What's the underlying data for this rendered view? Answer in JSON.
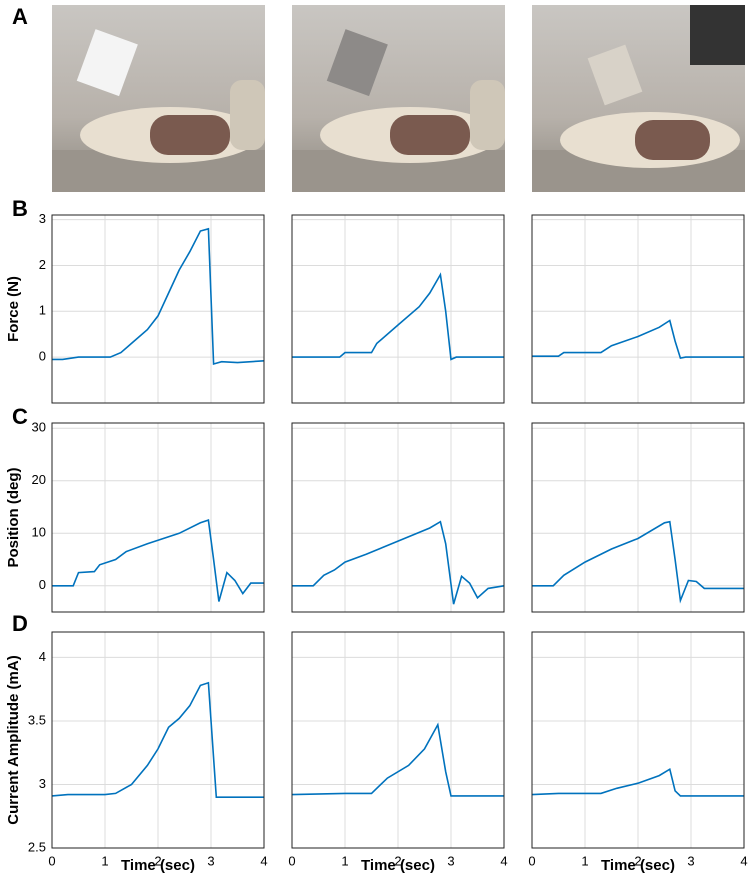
{
  "panel_labels": [
    "A",
    "B",
    "C",
    "D"
  ],
  "chart_data": [
    {
      "type": "line",
      "ylabel": "Force (N)",
      "xlim": [
        0,
        4
      ],
      "xticks": [
        0,
        1,
        2,
        3,
        4
      ],
      "ylim": [
        -1,
        3.1
      ],
      "yticks": [
        0,
        1,
        2,
        3
      ],
      "grid": true,
      "color": "#0072bd",
      "x": [
        0,
        0.2,
        0.5,
        1.1,
        1.3,
        1.5,
        1.8,
        2.0,
        2.2,
        2.4,
        2.6,
        2.8,
        2.95,
        3.05,
        3.2,
        3.5,
        4
      ],
      "values": [
        -0.05,
        -0.05,
        0,
        0,
        0.1,
        0.3,
        0.6,
        0.9,
        1.4,
        1.9,
        2.3,
        2.75,
        2.8,
        -0.15,
        -0.1,
        -0.12,
        -0.08
      ]
    },
    {
      "type": "line",
      "xlim": [
        0,
        4
      ],
      "xticks": [
        0,
        1,
        2,
        3,
        4
      ],
      "ylim": [
        -1,
        3.1
      ],
      "yticks": [
        0,
        1,
        2,
        3
      ],
      "grid": true,
      "color": "#0072bd",
      "x": [
        0,
        0.9,
        1.0,
        1.5,
        1.6,
        2.0,
        2.4,
        2.6,
        2.8,
        2.9,
        3.0,
        3.1,
        4
      ],
      "values": [
        0,
        0,
        0.1,
        0.1,
        0.3,
        0.7,
        1.1,
        1.4,
        1.8,
        1.0,
        -0.05,
        0,
        0
      ]
    },
    {
      "type": "line",
      "xlim": [
        0,
        4
      ],
      "xticks": [
        0,
        1,
        2,
        3,
        4
      ],
      "ylim": [
        -1,
        3.1
      ],
      "yticks": [
        0,
        1,
        2,
        3
      ],
      "grid": true,
      "color": "#0072bd",
      "x": [
        0,
        0.5,
        0.6,
        1.3,
        1.5,
        2.0,
        2.4,
        2.6,
        2.7,
        2.8,
        2.9,
        4
      ],
      "values": [
        0.02,
        0.02,
        0.1,
        0.1,
        0.25,
        0.45,
        0.65,
        0.8,
        0.35,
        -0.02,
        0,
        0
      ]
    },
    {
      "type": "line",
      "ylabel": "Position (deg)",
      "xlim": [
        0,
        4
      ],
      "xticks": [
        0,
        1,
        2,
        3,
        4
      ],
      "ylim": [
        -5,
        31
      ],
      "yticks": [
        0,
        10,
        20,
        30
      ],
      "grid": true,
      "color": "#0072bd",
      "x": [
        0,
        0.4,
        0.5,
        0.8,
        0.9,
        1.2,
        1.4,
        1.8,
        2.4,
        2.8,
        2.95,
        3.05,
        3.15,
        3.3,
        3.45,
        3.6,
        3.75,
        4
      ],
      "values": [
        0,
        0,
        2.5,
        2.7,
        4,
        5,
        6.5,
        8,
        10,
        12,
        12.5,
        5,
        -3,
        2.5,
        1,
        -1.5,
        0.5,
        0.5
      ]
    },
    {
      "type": "line",
      "xlim": [
        0,
        4
      ],
      "xticks": [
        0,
        1,
        2,
        3,
        4
      ],
      "ylim": [
        -5,
        31
      ],
      "yticks": [
        0,
        10,
        20,
        30
      ],
      "grid": true,
      "color": "#0072bd",
      "x": [
        0,
        0.4,
        0.6,
        0.8,
        1.0,
        1.4,
        2.0,
        2.6,
        2.8,
        2.9,
        3.05,
        3.2,
        3.35,
        3.5,
        3.7,
        4
      ],
      "values": [
        0,
        0,
        2,
        3,
        4.5,
        6,
        8.5,
        11,
        12.2,
        8,
        -3.5,
        1.8,
        0.5,
        -2.3,
        -0.5,
        0
      ]
    },
    {
      "type": "line",
      "xlim": [
        0,
        4
      ],
      "xticks": [
        0,
        1,
        2,
        3,
        4
      ],
      "ylim": [
        -5,
        31
      ],
      "yticks": [
        0,
        10,
        20,
        30
      ],
      "grid": true,
      "color": "#0072bd",
      "x": [
        0,
        0.4,
        0.6,
        1.0,
        1.5,
        2.0,
        2.5,
        2.6,
        2.7,
        2.8,
        2.95,
        3.1,
        3.25,
        4
      ],
      "values": [
        0,
        0,
        2,
        4.5,
        7,
        9,
        12,
        12.2,
        5,
        -2.8,
        1,
        0.8,
        -0.5,
        -0.5
      ]
    },
    {
      "type": "line",
      "ylabel": "Current Amplitude (mA)",
      "xlabel": "Time (sec)",
      "xlim": [
        0,
        4
      ],
      "xticks": [
        0,
        1,
        2,
        3,
        4
      ],
      "ylim": [
        2.5,
        4.2
      ],
      "yticks": [
        2.5,
        3,
        3.5,
        4
      ],
      "grid": true,
      "color": "#0072bd",
      "x": [
        0,
        0.3,
        1.0,
        1.2,
        1.5,
        1.8,
        2.0,
        2.2,
        2.4,
        2.6,
        2.8,
        2.95,
        3.1,
        3.5,
        4
      ],
      "values": [
        2.91,
        2.92,
        2.92,
        2.93,
        3.0,
        3.15,
        3.28,
        3.45,
        3.52,
        3.62,
        3.78,
        3.8,
        2.9,
        2.9,
        2.9
      ]
    },
    {
      "type": "line",
      "xlabel": "Time (sec)",
      "xlim": [
        0,
        4
      ],
      "xticks": [
        0,
        1,
        2,
        3,
        4
      ],
      "ylim": [
        2.5,
        4.2
      ],
      "yticks": [
        2.5,
        3,
        3.5,
        4
      ],
      "grid": true,
      "color": "#0072bd",
      "x": [
        0,
        1.0,
        1.5,
        1.8,
        2.2,
        2.5,
        2.75,
        2.9,
        3.0,
        4
      ],
      "values": [
        2.92,
        2.93,
        2.93,
        3.05,
        3.15,
        3.28,
        3.47,
        3.1,
        2.91,
        2.91
      ]
    },
    {
      "type": "line",
      "xlabel": "Time (sec)",
      "xlim": [
        0,
        4
      ],
      "xticks": [
        0,
        1,
        2,
        3,
        4
      ],
      "ylim": [
        2.5,
        4.2
      ],
      "yticks": [
        2.5,
        3,
        3.5,
        4
      ],
      "grid": true,
      "color": "#0072bd",
      "x": [
        0,
        0.5,
        1.3,
        1.6,
        2.0,
        2.4,
        2.6,
        2.7,
        2.8,
        4
      ],
      "values": [
        2.92,
        2.93,
        2.93,
        2.97,
        3.01,
        3.07,
        3.12,
        2.95,
        2.91,
        2.91
      ]
    }
  ]
}
